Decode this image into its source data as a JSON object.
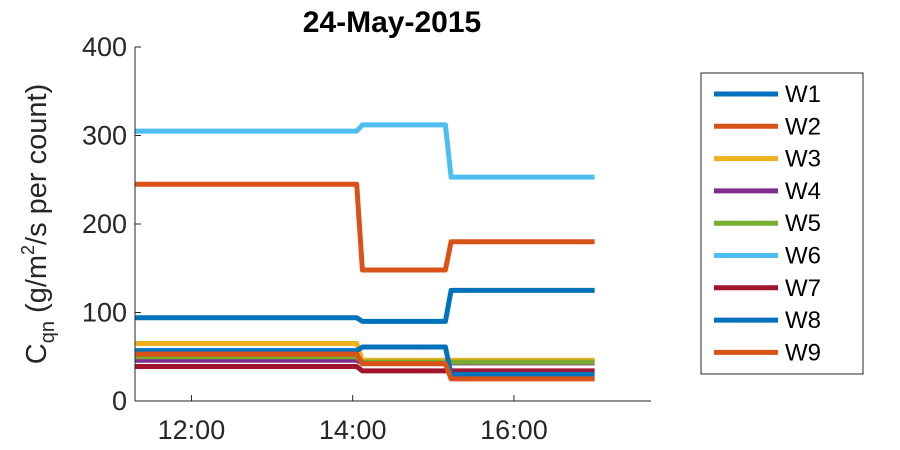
{
  "chart_data": {
    "type": "line",
    "title": "24-May-2015",
    "ylabel": {
      "main": "C",
      "sub": "qn",
      "unit_prefix": "(g/m",
      "unit_sup": "2",
      "unit_suffix": "/s per count)"
    },
    "x_ticks": [
      "12:00",
      "14:00",
      "16:00"
    ],
    "x_tick_hours": [
      12,
      14,
      16
    ],
    "xlim": [
      11.3,
      17.7
    ],
    "ylim": [
      0,
      400
    ],
    "y_ticks": [
      0,
      100,
      200,
      300,
      400
    ],
    "legend_position": "right",
    "grid": false,
    "series": [
      {
        "name": "W1",
        "color": "#0072BD",
        "x": [
          11.3,
          14.05,
          14.12,
          15.15,
          15.22,
          17.0
        ],
        "y": [
          94,
          94,
          90,
          90,
          125,
          125
        ]
      },
      {
        "name": "W2",
        "color": "#D95319",
        "x": [
          11.3,
          14.05,
          14.12,
          15.15,
          15.22,
          17.0
        ],
        "y": [
          245,
          245,
          148,
          148,
          180,
          180
        ]
      },
      {
        "name": "W3",
        "color": "#EDB120",
        "x": [
          11.3,
          14.05,
          14.12,
          17.0
        ],
        "y": [
          65,
          65,
          46,
          46
        ]
      },
      {
        "name": "W4",
        "color": "#7E2F8E",
        "x": [
          11.3,
          14.05,
          14.12,
          17.0
        ],
        "y": [
          46,
          46,
          43,
          43
        ]
      },
      {
        "name": "W5",
        "color": "#77AC30",
        "x": [
          11.3,
          14.05,
          14.12,
          17.0
        ],
        "y": [
          50,
          50,
          44,
          44
        ]
      },
      {
        "name": "W6",
        "color": "#4DBEEE",
        "x": [
          11.3,
          14.05,
          14.12,
          15.15,
          15.22,
          17.0
        ],
        "y": [
          305,
          305,
          312,
          312,
          253,
          253
        ]
      },
      {
        "name": "W7",
        "color": "#A2142F",
        "x": [
          11.3,
          14.05,
          14.12,
          17.0
        ],
        "y": [
          39,
          39,
          34,
          34
        ]
      },
      {
        "name": "W8",
        "color": "#0072BD",
        "x": [
          11.3,
          14.05,
          14.12,
          15.15,
          15.22,
          17.0
        ],
        "y": [
          57,
          57,
          61,
          61,
          30,
          30
        ]
      },
      {
        "name": "W9",
        "color": "#D95319",
        "x": [
          11.3,
          14.05,
          14.12,
          15.15,
          15.22,
          17.0
        ],
        "y": [
          53,
          53,
          42,
          42,
          25,
          25
        ]
      }
    ]
  }
}
